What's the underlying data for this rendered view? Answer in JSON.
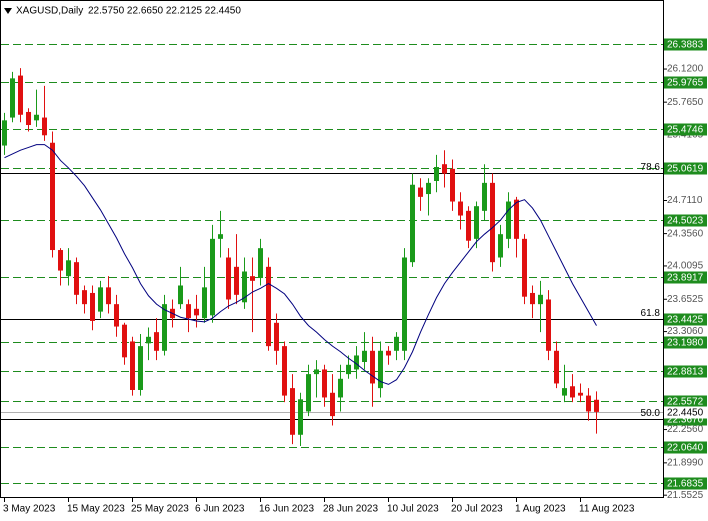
{
  "chart_data": {
    "type": "candlestick",
    "title": "XAGUSD,Daily",
    "ohlc_label": "22.5750 22.6650 22.2125 22.4450",
    "categories": [
      "3 May 2023",
      null,
      null,
      null,
      null,
      null,
      null,
      null,
      "15 May 2023",
      null,
      null,
      null,
      null,
      null,
      null,
      null,
      "25 May 2023",
      null,
      null,
      null,
      null,
      null,
      null,
      null,
      "6 Jun 2023",
      null,
      null,
      null,
      null,
      null,
      null,
      null,
      "16 Jun 2023",
      null,
      null,
      null,
      null,
      null,
      null,
      null,
      "28 Jun 2023",
      null,
      null,
      null,
      null,
      null,
      null,
      null,
      "10 Jul 2023",
      null,
      null,
      null,
      null,
      null,
      null,
      null,
      "20 Jul 2023",
      null,
      null,
      null,
      null,
      null,
      null,
      null,
      "1 Aug 2023",
      null,
      null,
      null,
      null,
      null,
      null,
      null,
      "11 Aug 2023",
      null,
      null
    ],
    "open": [
      25.3,
      25.6,
      26.05,
      25.66,
      25.57,
      25.6,
      25.33,
      24.18,
      23.9,
      24.05,
      23.75,
      23.72,
      23.52,
      23.78,
      23.6,
      23.38,
      23.2,
      22.68,
      23.18,
      23.3,
      23.1,
      23.55,
      23.6,
      23.6,
      23.55,
      23.45,
      23.48,
      24.3,
      24.1,
      24.0,
      23.62,
      23.9,
      23.88,
      24.0,
      23.4,
      23.15,
      22.7,
      22.2,
      22.45,
      22.85,
      22.9,
      22.65,
      22.6,
      22.85,
      22.9,
      22.98,
      23.1,
      22.7,
      23.1,
      23.1,
      23.1,
      24.05,
      24.85,
      24.78,
      24.92,
      25.1,
      25.05,
      24.7,
      24.6,
      24.3,
      24.6,
      24.9,
      24.1,
      24.3,
      24.72,
      24.3,
      23.72,
      23.6,
      23.65,
      23.1,
      22.62,
      22.72,
      22.65,
      22.62,
      22.575
    ],
    "high": [
      25.65,
      26.09,
      26.13,
      25.7,
      25.9,
      25.94,
      25.45,
      24.2,
      24.2,
      24.1,
      23.8,
      23.8,
      23.85,
      23.9,
      23.7,
      23.4,
      23.25,
      23.28,
      23.35,
      23.45,
      23.7,
      23.65,
      24.0,
      23.65,
      23.7,
      24.0,
      24.45,
      24.6,
      24.2,
      24.35,
      24.1,
      24.1,
      24.3,
      24.1,
      23.5,
      23.2,
      22.85,
      22.65,
      22.95,
      23.0,
      22.95,
      22.85,
      22.95,
      23.05,
      23.15,
      23.3,
      23.25,
      23.2,
      23.15,
      23.3,
      24.2,
      25.0,
      24.95,
      24.95,
      25.2,
      25.25,
      25.15,
      24.8,
      24.65,
      24.7,
      25.1,
      25.0,
      24.45,
      24.8,
      24.75,
      24.35,
      23.8,
      23.85,
      23.75,
      23.2,
      22.95,
      22.85,
      22.75,
      22.7,
      22.665
    ],
    "low": [
      25.2,
      25.55,
      25.55,
      25.45,
      25.5,
      25.35,
      24.1,
      23.8,
      23.8,
      23.6,
      23.5,
      23.32,
      23.45,
      23.5,
      23.25,
      22.95,
      22.62,
      22.62,
      23.0,
      23.0,
      23.05,
      23.35,
      23.55,
      23.3,
      23.35,
      23.4,
      23.4,
      24.1,
      23.55,
      23.6,
      23.55,
      23.3,
      23.8,
      23.1,
      22.95,
      22.55,
      22.1,
      22.08,
      22.4,
      22.6,
      22.5,
      22.3,
      22.45,
      22.8,
      22.8,
      22.9,
      22.5,
      22.6,
      22.95,
      23.0,
      23.0,
      24.0,
      24.6,
      24.55,
      24.8,
      24.85,
      24.6,
      24.4,
      24.2,
      24.2,
      24.5,
      23.95,
      24.0,
      24.2,
      24.1,
      23.6,
      23.45,
      23.3,
      23.0,
      22.7,
      22.55,
      22.55,
      22.55,
      22.35,
      22.2125
    ],
    "close": [
      25.57,
      26.02,
      25.63,
      25.52,
      25.63,
      25.41,
      24.18,
      23.96,
      24.07,
      23.7,
      23.6,
      23.42,
      23.78,
      23.6,
      23.36,
      23.03,
      22.68,
      23.15,
      23.25,
      23.1,
      23.6,
      23.45,
      23.8,
      23.45,
      23.48,
      23.78,
      24.3,
      24.35,
      23.65,
      23.7,
      23.95,
      23.85,
      24.2,
      23.15,
      23.1,
      22.62,
      22.2,
      22.58,
      22.85,
      22.9,
      22.6,
      22.4,
      22.8,
      22.95,
      23.05,
      23.1,
      22.75,
      23.1,
      23.05,
      23.25,
      24.1,
      24.88,
      24.75,
      24.9,
      25.07,
      25.0,
      24.7,
      24.55,
      24.28,
      24.65,
      24.9,
      24.05,
      24.35,
      24.7,
      24.3,
      23.68,
      23.6,
      23.7,
      23.1,
      22.75,
      22.7,
      22.6,
      22.62,
      22.45,
      22.445
    ],
    "bull_color": "#1a9a1a",
    "bear_color": "#e01010",
    "ma": {
      "color": "#00007f",
      "values": [
        25.17,
        25.21,
        25.25,
        25.28,
        25.31,
        25.31,
        25.25,
        25.14,
        25.06,
        24.97,
        24.87,
        24.74,
        24.61,
        24.46,
        24.31,
        24.14,
        23.99,
        23.82,
        23.69,
        23.6,
        23.54,
        23.5,
        23.46,
        23.44,
        23.42,
        23.41,
        23.45,
        23.52,
        23.58,
        23.62,
        23.67,
        23.73,
        23.77,
        23.82,
        23.77,
        23.71,
        23.6,
        23.47,
        23.37,
        23.3,
        23.22,
        23.15,
        23.09,
        23.02,
        22.96,
        22.89,
        22.83,
        22.77,
        22.74,
        22.79,
        22.92,
        23.09,
        23.3,
        23.49,
        23.67,
        23.82,
        23.94,
        24.05,
        24.16,
        24.27,
        24.35,
        24.42,
        24.5,
        24.61,
        24.69,
        24.72,
        24.63,
        24.5,
        24.33,
        24.16,
        23.99,
        23.82,
        23.67,
        23.52,
        23.37
      ]
    },
    "ylim": [
      21.533,
      26.86
    ],
    "yticks": [
      {
        "value": 26.12,
        "label": "26.1200"
      },
      {
        "value": 25.765,
        "label": "25.7650"
      },
      25.4165,
      {
        "value": 24.711,
        "label": "24.7110"
      },
      {
        "value": 24.356,
        "label": "24.3560"
      },
      24.0095,
      23.6525,
      {
        "value": 23.306,
        "label": "23.3060"
      },
      {
        "value": 22.256,
        "label": "22.2560"
      },
      {
        "value": 21.899,
        "label": "21.8990"
      },
      21.5525
    ],
    "levels": [
      26.3883,
      25.9765,
      25.4746,
      25.0619,
      24.5023,
      23.8917,
      23.4425,
      {
        "value": 23.198,
        "label": "23.1980"
      },
      22.8813,
      22.5572,
      {
        "value": 22.367,
        "label": "22.3670"
      },
      {
        "value": 22.064,
        "label": "22.0640"
      },
      21.6835
    ],
    "level_color": "#1e8c1e",
    "fib": [
      {
        "value": 25.005,
        "label": "78.6"
      },
      {
        "value": 23.44,
        "label": "61.8"
      },
      {
        "value": 22.37,
        "label": "50.0"
      }
    ],
    "price_line": {
      "value": 22.445,
      "label": "22.4450"
    }
  }
}
